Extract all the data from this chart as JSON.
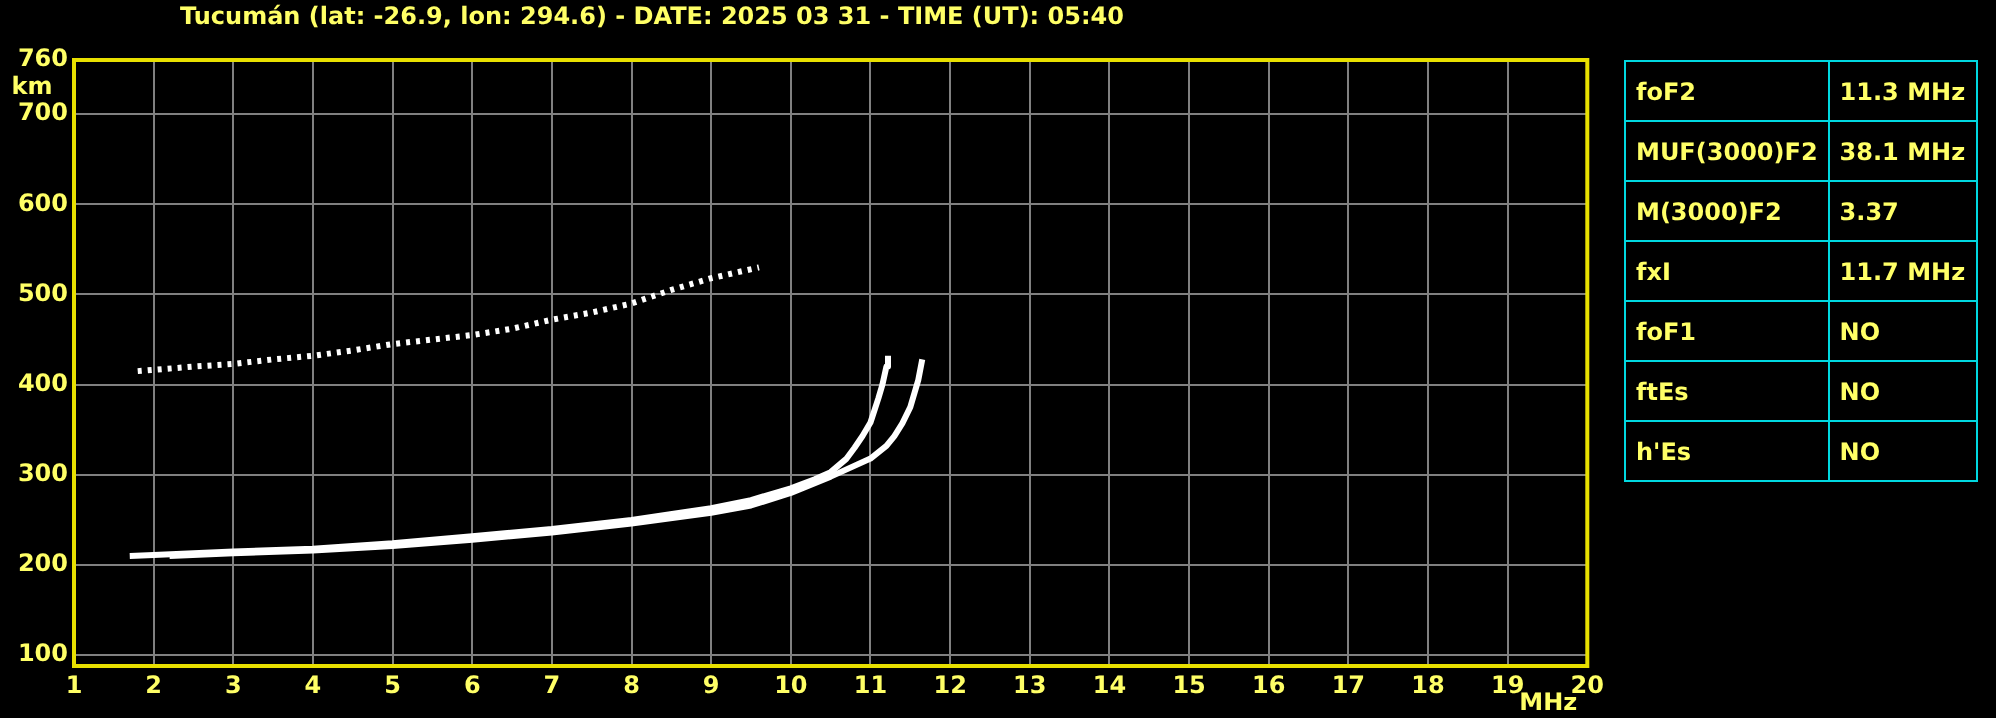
{
  "chart_data": [
    {
      "type": "line",
      "title": "Tucumán (lat: -26.9, lon: 294.6) - DATE: 2025 03 31 - TIME (UT): 05:40",
      "xlabel": "MHz",
      "ylabel": "km",
      "xlim": [
        1,
        20
      ],
      "ylim": [
        88,
        760
      ],
      "xticks": [
        1,
        2,
        3,
        4,
        5,
        6,
        7,
        8,
        9,
        10,
        11,
        12,
        13,
        14,
        15,
        16,
        17,
        18,
        19,
        20
      ],
      "yticks": [
        100,
        200,
        300,
        400,
        500,
        600,
        700,
        760
      ],
      "grid": true,
      "legend": false,
      "marker": "none",
      "series": [
        {
          "color": "#ffffff",
          "line_style": "solid",
          "x": [
            1.7,
            2,
            3,
            4,
            5,
            6,
            7,
            8,
            9,
            9.5,
            10,
            10.3,
            10.5,
            10.7,
            10.8,
            10.9,
            11,
            11.1,
            11.15,
            11.2,
            11.22
          ],
          "values": [
            210,
            211,
            215,
            218,
            224,
            232,
            240,
            250,
            263,
            272,
            285,
            295,
            303,
            318,
            330,
            343,
            358,
            385,
            400,
            420,
            432
          ]
        },
        {
          "color": "#ffffff",
          "line_style": "solid",
          "x": [
            2.2,
            3,
            4,
            5,
            6,
            7,
            8,
            9,
            9.5,
            10,
            10.5,
            11,
            11.2,
            11.3,
            11.4,
            11.5,
            11.55,
            11.6,
            11.65
          ],
          "values": [
            210,
            213,
            216,
            221,
            228,
            236,
            246,
            258,
            266,
            280,
            298,
            318,
            332,
            343,
            357,
            375,
            390,
            405,
            428
          ]
        },
        {
          "color": "#ffffff",
          "line_style": "dotted",
          "x": [
            1.8,
            2.5,
            3,
            3.5,
            4,
            4.5,
            5,
            5.5,
            6,
            6.5,
            7,
            7.5,
            8,
            8.5,
            9,
            9.3,
            9.6
          ],
          "values": [
            415,
            420,
            423,
            428,
            432,
            438,
            445,
            450,
            455,
            462,
            472,
            480,
            490,
            505,
            518,
            524,
            530
          ]
        }
      ]
    },
    {
      "type": "other",
      "annotations": [
        "foF2",
        "11.3 MHz",
        "MUF(3000)F2",
        "38.1 MHz",
        "M(3000)F2",
        "3.37",
        "fxI",
        "11.7 MHz",
        "foF1",
        "NO",
        "ftEs",
        "NO",
        "h'Es",
        "NO"
      ]
    }
  ]
}
